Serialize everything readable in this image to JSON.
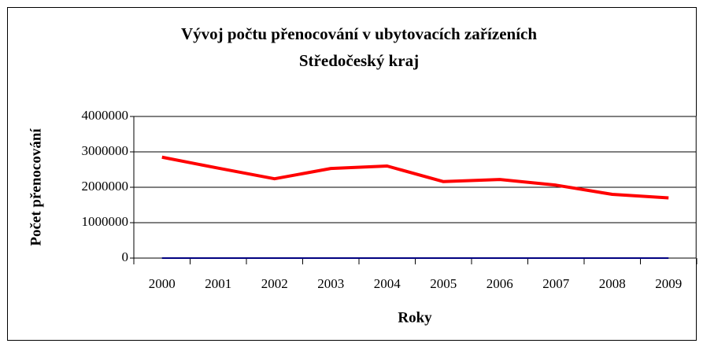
{
  "chart_data": {
    "type": "line",
    "title": "Vývoj počtu přenocování v ubytovacích zařízeních",
    "subtitle": "Středočeský kraj",
    "x_label": "Roky",
    "y_label": "Počet přenocování",
    "categories": [
      "2000",
      "2001",
      "2002",
      "2003",
      "2004",
      "2005",
      "2006",
      "2007",
      "2008",
      "2009"
    ],
    "series": [
      {
        "color": "#ff0000",
        "values": [
          2850000,
          2540000,
          2240000,
          2530000,
          2600000,
          2160000,
          2220000,
          2060000,
          1800000,
          1700000
        ]
      },
      {
        "color": "#000080",
        "values": [
          0,
          0,
          0,
          0,
          0,
          0,
          0,
          0,
          0,
          0
        ]
      }
    ],
    "ylim": [
      0,
      4000000
    ],
    "yticks": [
      0,
      1000000,
      2000000,
      3000000,
      4000000
    ],
    "grid": true
  }
}
